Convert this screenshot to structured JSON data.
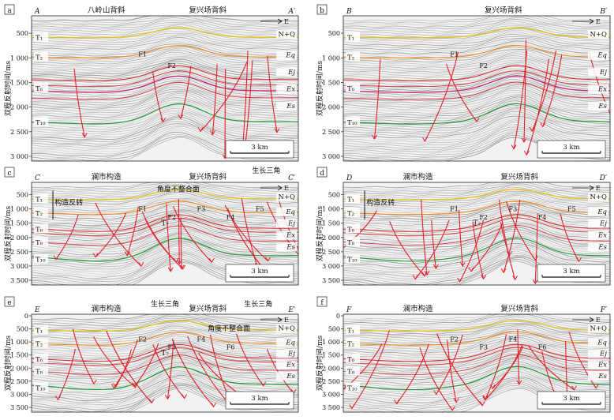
{
  "figure": {
    "y_axis_label": "双程反射时间/ms",
    "scale_label": "3 km",
    "east_label": "E",
    "panels": [
      {
        "letter": "a",
        "line_start": "A",
        "line_end": "A′",
        "structures": [
          "八岭山背斜",
          "复兴场背斜"
        ],
        "time_ticks": [
          "500",
          "1 000",
          "1 500",
          "2 000",
          "2 500",
          "3 000"
        ],
        "horizons": [
          {
            "label": "T₁",
            "sub": "1"
          },
          {
            "label": "T₂",
            "sub": "2"
          },
          {
            "label": "T₆",
            "sub": "6"
          },
          {
            "label": "T₁₀",
            "sub": "10"
          }
        ],
        "formations": [
          "N+Q",
          "Eq",
          "Ej",
          "Ex",
          "Es"
        ],
        "faults": [
          "F1",
          "F2"
        ],
        "annotations": []
      },
      {
        "letter": "b",
        "line_start": "B",
        "line_end": "B′",
        "structures": [
          "复兴场背斜"
        ],
        "time_ticks": [
          "500",
          "1 000",
          "1 500",
          "2 000",
          "2 500",
          "3 000"
        ],
        "horizons": [
          {
            "label": "T₁",
            "sub": "1"
          },
          {
            "label": "T₂",
            "sub": "2"
          },
          {
            "label": "T₆",
            "sub": "6"
          },
          {
            "label": "T₁₀",
            "sub": "10"
          }
        ],
        "formations": [
          "N+Q",
          "Eq",
          "Ej",
          "Ex",
          "Es"
        ],
        "faults": [
          "F1",
          "F2"
        ],
        "annotations": []
      },
      {
        "letter": "c",
        "line_start": "C",
        "line_end": "C′",
        "structures": [
          "澜市构造",
          "复兴场背斜"
        ],
        "time_ticks": [
          "500",
          "1 000",
          "1 500",
          "2 000",
          "2 500",
          "3 000",
          "3 500"
        ],
        "horizons": [
          {
            "label": "T₁",
            "sub": "1"
          },
          {
            "label": "T₂",
            "sub": "2"
          },
          {
            "label": "T₆",
            "sub": "6"
          },
          {
            "label": "T₈",
            "sub": "8"
          },
          {
            "label": "T₁₀",
            "sub": "10"
          }
        ],
        "formations": [
          "N+Q",
          "Eq",
          "Ej",
          "Ex",
          "Es"
        ],
        "faults": [
          "F1",
          "F2",
          "F3",
          "F4",
          "F5"
        ],
        "annotations": [
          "生长三角",
          "角度不整合面",
          "构造反转",
          "T₇"
        ]
      },
      {
        "letter": "d",
        "line_start": "D",
        "line_end": "D′",
        "structures": [
          "澜市构造",
          "复兴场背斜"
        ],
        "time_ticks": [
          "500",
          "1 000",
          "1 500",
          "2 000",
          "2 500",
          "3 000",
          "3 500"
        ],
        "horizons": [
          {
            "label": "T₁",
            "sub": "1"
          },
          {
            "label": "T₂",
            "sub": "2"
          },
          {
            "label": "T₆",
            "sub": "6"
          },
          {
            "label": "T₈",
            "sub": "8"
          },
          {
            "label": "T₁₀",
            "sub": "10"
          }
        ],
        "formations": [
          "N+Q",
          "Eq",
          "Ej",
          "Ex",
          "Es"
        ],
        "faults": [
          "F1",
          "F2",
          "F3",
          "F4",
          "F5"
        ],
        "annotations": [
          "构造反转",
          "T₇"
        ]
      },
      {
        "letter": "e",
        "line_start": "E",
        "line_end": "E′",
        "structures": [
          "澜市构造",
          "复兴场背斜"
        ],
        "time_ticks": [
          "0",
          "500",
          "1 000",
          "1 500",
          "2 000",
          "2 500",
          "3 000",
          "3 500"
        ],
        "horizons": [
          {
            "label": "T₁",
            "sub": "1"
          },
          {
            "label": "T₂",
            "sub": "2"
          },
          {
            "label": "T₆",
            "sub": "6"
          },
          {
            "label": "T₈",
            "sub": "8"
          },
          {
            "label": "T₁₀",
            "sub": "10"
          }
        ],
        "formations": [
          "N+Q",
          "Eq",
          "Ej",
          "Ex",
          "Es"
        ],
        "faults": [
          "F2",
          "F3",
          "F4",
          "F6"
        ],
        "annotations": [
          "生长三角",
          "生长三角",
          "角度不整合面",
          "T₇"
        ]
      },
      {
        "letter": "f",
        "line_start": "F",
        "line_end": "F′",
        "structures": [
          "澜市构造",
          "复兴场背斜"
        ],
        "time_ticks": [
          "0",
          "500",
          "1 000",
          "1 500",
          "2 000",
          "2 500",
          "3 000",
          "3 500"
        ],
        "horizons": [
          {
            "label": "T₁",
            "sub": "1"
          },
          {
            "label": "T₂",
            "sub": "2"
          },
          {
            "label": "T₆",
            "sub": "6"
          },
          {
            "label": "T₈",
            "sub": "8"
          },
          {
            "label": "T₁₀",
            "sub": "10"
          }
        ],
        "formations": [
          "N+Q",
          "Eq",
          "Ej",
          "Ex",
          "Es"
        ],
        "faults": [
          "F2",
          "F3",
          "F4",
          "F6"
        ],
        "annotations": []
      }
    ]
  },
  "colors": {
    "t1": "#e8c21a",
    "t2": "#f08a1c",
    "t6": "#d8262a",
    "t10": "#1f9a3a",
    "ex_band": "#c2186b",
    "fault": "#e3202a",
    "reflection": "#8c8c8c",
    "annotation_blue": "#1f3fb0"
  }
}
